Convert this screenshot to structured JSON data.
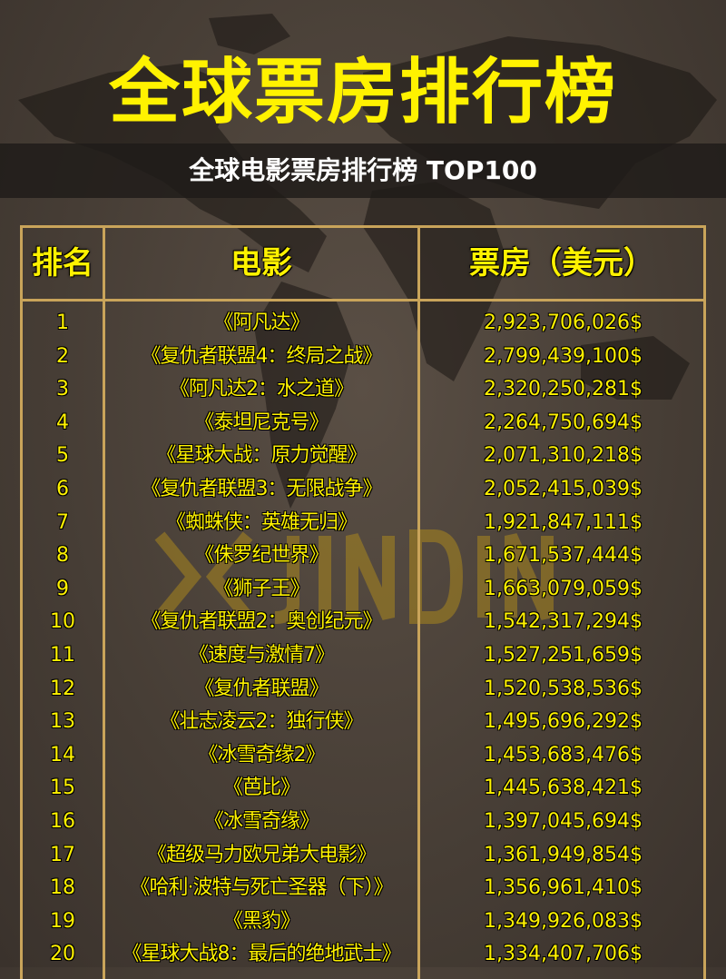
{
  "header": {
    "title": "全球票房排行榜",
    "subtitle": "全球电影票房排行榜 TOP100"
  },
  "watermark": {
    "text": "JINDING",
    "color": "#aa871e"
  },
  "colors": {
    "accent": "#fff200",
    "border": "#c9a45a",
    "background": "#463d35"
  },
  "table": {
    "columns": [
      "排名",
      "电影",
      "票房（美元）"
    ],
    "rows": [
      {
        "rank": "1",
        "movie": "《阿凡达》",
        "gross": "2,923,706,026$"
      },
      {
        "rank": "2",
        "movie": "《复仇者联盟4：终局之战》",
        "gross": "2,799,439,100$"
      },
      {
        "rank": "3",
        "movie": "《阿凡达2：水之道》",
        "gross": "2,320,250,281$"
      },
      {
        "rank": "4",
        "movie": "《泰坦尼克号》",
        "gross": "2,264,750,694$"
      },
      {
        "rank": "5",
        "movie": "《星球大战：原力觉醒》",
        "gross": "2,071,310,218$"
      },
      {
        "rank": "6",
        "movie": "《复仇者联盟3：无限战争》",
        "gross": "2,052,415,039$"
      },
      {
        "rank": "7",
        "movie": "《蜘蛛侠：英雄无归》",
        "gross": "1,921,847,111$"
      },
      {
        "rank": "8",
        "movie": "《侏罗纪世界》",
        "gross": "1,671,537,444$"
      },
      {
        "rank": "9",
        "movie": "《狮子王》",
        "gross": "1,663,079,059$"
      },
      {
        "rank": "10",
        "movie": "《复仇者联盟2：奥创纪元》",
        "gross": "1,542,317,294$"
      },
      {
        "rank": "11",
        "movie": "《速度与激情7》",
        "gross": "1,527,251,659$"
      },
      {
        "rank": "12",
        "movie": "《复仇者联盟》",
        "gross": "1,520,538,536$"
      },
      {
        "rank": "13",
        "movie": "《壮志凌云2：独行侠》",
        "gross": "1,495,696,292$"
      },
      {
        "rank": "14",
        "movie": "《冰雪奇缘2》",
        "gross": "1,453,683,476$"
      },
      {
        "rank": "15",
        "movie": "《芭比》",
        "gross": "1,445,638,421$"
      },
      {
        "rank": "16",
        "movie": "《冰雪奇缘》",
        "gross": "1,397,045,694$"
      },
      {
        "rank": "17",
        "movie": "《超级马力欧兄弟大电影》",
        "gross": "1,361,949,854$"
      },
      {
        "rank": "18",
        "movie": "《哈利·波特与死亡圣器（下）》",
        "gross": "1,356,961,410$"
      },
      {
        "rank": "19",
        "movie": "《黑豹》",
        "gross": "1,349,926,083$"
      },
      {
        "rank": "20",
        "movie": "《星球大战8：最后的绝地武士》",
        "gross": "1,334,407,706$"
      }
    ]
  }
}
